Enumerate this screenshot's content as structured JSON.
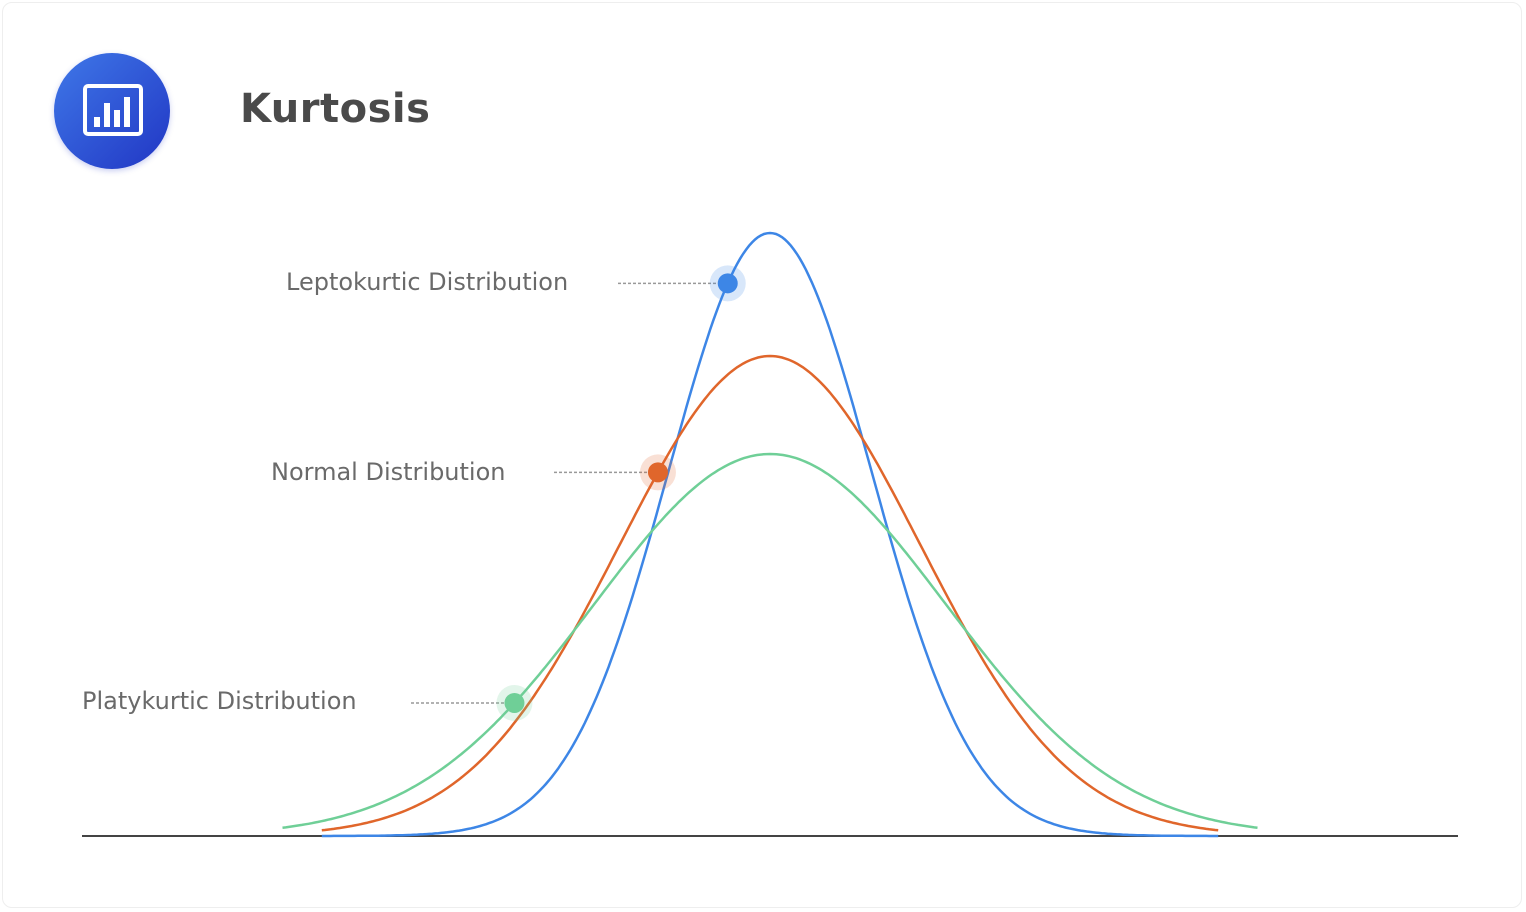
{
  "header": {
    "title": "Kurtosis",
    "icon": "bar-chart-icon"
  },
  "colors": {
    "leptokurtic": "#3d86e6",
    "normal": "#e0662b",
    "platykurtic": "#6fcf97",
    "axis": "#444444",
    "accent": "#2f57d8"
  },
  "chart_data": {
    "type": "line",
    "title": "Kurtosis",
    "xlabel": "",
    "ylabel": "",
    "xlim": [
      -7,
      7
    ],
    "ylim": [
      0,
      0.62
    ],
    "grid": false,
    "series": [
      {
        "name": "Leptokurtic Distribution",
        "label": "Leptokurtic  Distribution",
        "mean": 0,
        "sigma": 1.03,
        "peak": 0.603,
        "range": [
          -4.56,
          4.56
        ],
        "marker_x": -0.43,
        "color": "#3d86e6"
      },
      {
        "name": "Normal Distribution",
        "label": "Normal  Distribution",
        "mean": 0,
        "sigma": 1.53,
        "peak": 0.48,
        "range": [
          -4.56,
          4.56
        ],
        "marker_x": -1.14,
        "color": "#e0662b"
      },
      {
        "name": "Platykurtic Distribution",
        "label": "Platykurtic Distribution",
        "mean": 0,
        "sigma": 1.79,
        "peak": 0.382,
        "range": [
          -4.96,
          4.96
        ],
        "marker_x": -2.6,
        "color": "#6fcf97"
      }
    ]
  }
}
